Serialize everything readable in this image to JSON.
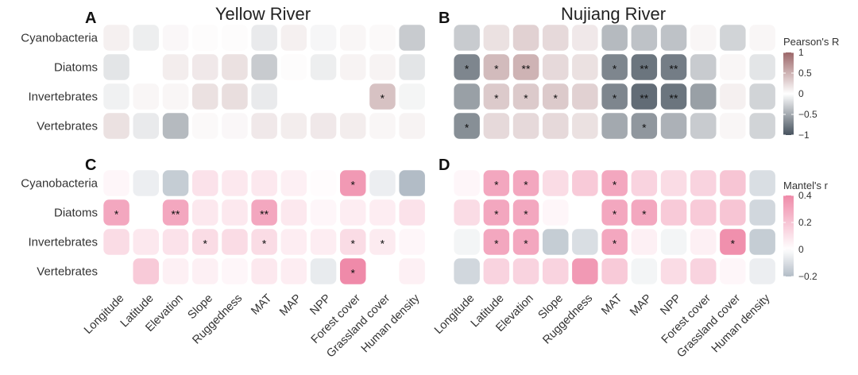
{
  "titles": {
    "left": "Yellow River",
    "right": "Nujiang River"
  },
  "panel_letters": [
    "A",
    "B",
    "C",
    "D"
  ],
  "chart_data": [
    {
      "panel": "A",
      "type": "heatmap",
      "metric": "Pearson's R",
      "title": "Yellow River",
      "rows": [
        "Cyanobacteria",
        "Diatoms",
        "Invertebrates",
        "Vertebrates"
      ],
      "columns": [
        "Longitude",
        "Latitude",
        "Elevation",
        "Slope",
        "Ruggedness",
        "MAT",
        "MAP",
        "NPP",
        "Forest cover",
        "Grassland cover",
        "Human density"
      ],
      "values": [
        [
          0.1,
          -0.1,
          0.05,
          0.02,
          0.02,
          -0.12,
          0.1,
          -0.05,
          0.06,
          0.04,
          -0.3
        ],
        [
          -0.15,
          0,
          0.12,
          0.15,
          0.2,
          -0.3,
          0.02,
          -0.1,
          0.08,
          0.08,
          -0.15
        ],
        [
          -0.08,
          0.06,
          0.06,
          0.2,
          0.22,
          -0.12,
          0,
          0,
          0,
          0.4,
          -0.06
        ],
        [
          0.2,
          -0.12,
          -0.4,
          0.04,
          0.05,
          0.15,
          0.12,
          0.15,
          0.12,
          0.06,
          0.08
        ]
      ],
      "significance": [
        [
          "",
          "",
          "",
          "",
          "",
          "",
          "",
          "",
          "",
          "",
          ""
        ],
        [
          "",
          "",
          "",
          "",
          "",
          "",
          "",
          "",
          "",
          "",
          ""
        ],
        [
          "",
          "",
          "",
          "",
          "",
          "",
          "",
          "",
          "",
          "*",
          ""
        ],
        [
          "",
          "",
          "",
          "",
          "",
          "",
          "",
          "",
          "",
          "",
          ""
        ]
      ]
    },
    {
      "panel": "B",
      "type": "heatmap",
      "metric": "Pearson's R",
      "title": "Nujiang River",
      "rows": [
        "Cyanobacteria",
        "Diatoms",
        "Invertebrates",
        "Vertebrates"
      ],
      "columns": [
        "Longitude",
        "Latitude",
        "Elevation",
        "Slope",
        "Ruggedness",
        "MAT",
        "MAP",
        "NPP",
        "Forest cover",
        "Grassland cover",
        "Human density"
      ],
      "values": [
        [
          -0.3,
          0.2,
          0.3,
          0.25,
          0.15,
          -0.4,
          -0.35,
          -0.35,
          0.06,
          -0.25,
          0.06
        ],
        [
          -0.7,
          0.45,
          0.5,
          0.25,
          0.2,
          -0.7,
          -0.8,
          -0.75,
          -0.3,
          0.06,
          -0.15
        ],
        [
          -0.55,
          0.35,
          0.35,
          0.35,
          0.3,
          -0.7,
          -0.85,
          -0.8,
          -0.55,
          0.1,
          -0.25
        ],
        [
          -0.65,
          0.25,
          0.25,
          0.25,
          0.2,
          -0.5,
          -0.6,
          -0.45,
          -0.3,
          0.06,
          -0.25
        ]
      ],
      "significance": [
        [
          "",
          "",
          "",
          "",
          "",
          "",
          "",
          "",
          "",
          "",
          ""
        ],
        [
          "*",
          "*",
          "**",
          "",
          "",
          "*",
          "**",
          "**",
          "",
          "",
          ""
        ],
        [
          "",
          "*",
          "*",
          "*",
          "",
          "*",
          "**",
          "**",
          "",
          "",
          ""
        ],
        [
          "*",
          "",
          "",
          "",
          "",
          "",
          "*",
          "",
          "",
          "",
          ""
        ]
      ]
    },
    {
      "panel": "C",
      "type": "heatmap",
      "metric": "Mantel's r",
      "title": "",
      "rows": [
        "Cyanobacteria",
        "Diatoms",
        "Invertebrates",
        "Vertebrates"
      ],
      "columns": [
        "Longitude",
        "Latitude",
        "Elevation",
        "Slope",
        "Ruggedness",
        "MAT",
        "MAP",
        "NPP",
        "Forest cover",
        "Grassland cover",
        "Human density"
      ],
      "values": [
        [
          0.03,
          -0.05,
          -0.15,
          0.1,
          0.08,
          0.08,
          0.05,
          0.01,
          0.35,
          -0.05,
          -0.2
        ],
        [
          0.3,
          0,
          0.3,
          0.08,
          0.08,
          0.3,
          0.08,
          0.03,
          0.06,
          0.06,
          0.1
        ],
        [
          0.12,
          0.08,
          0.1,
          0.12,
          0.12,
          0.12,
          0.06,
          0.06,
          0.12,
          0.07,
          0.03
        ],
        [
          0,
          0.18,
          0.05,
          0.05,
          0.03,
          0.08,
          0.06,
          -0.06,
          0.4,
          0,
          0.05
        ]
      ],
      "significance": [
        [
          "",
          "",
          "",
          "",
          "",
          "",
          "",
          "",
          "*",
          "",
          ""
        ],
        [
          "*",
          "",
          "**",
          "",
          "",
          "**",
          "",
          "",
          "",
          "",
          ""
        ],
        [
          "",
          "",
          "",
          "*",
          "",
          "*",
          "",
          "",
          "*",
          "*",
          ""
        ],
        [
          "",
          "",
          "",
          "",
          "",
          "",
          "",
          "",
          "*",
          "",
          ""
        ]
      ]
    },
    {
      "panel": "D",
      "type": "heatmap",
      "metric": "Mantel's r",
      "title": "",
      "rows": [
        "Cyanobacteria",
        "Diatoms",
        "Invertebrates",
        "Vertebrates"
      ],
      "columns": [
        "Longitude",
        "Latitude",
        "Elevation",
        "Slope",
        "Ruggedness",
        "MAT",
        "MAP",
        "NPP",
        "Forest cover",
        "Grassland cover",
        "Human density"
      ],
      "values": [
        [
          0.03,
          0.3,
          0.3,
          0.12,
          0.18,
          0.3,
          0.15,
          0.12,
          0.15,
          0.2,
          -0.1
        ],
        [
          0.12,
          0.3,
          0.3,
          0.03,
          0,
          0.3,
          0.3,
          0.18,
          0.18,
          0.2,
          -0.12
        ],
        [
          -0.03,
          0.3,
          0.3,
          -0.15,
          -0.1,
          0.3,
          0.05,
          -0.03,
          0.05,
          0.38,
          -0.15
        ],
        [
          -0.12,
          0.15,
          0.15,
          0.15,
          0.35,
          0.18,
          -0.03,
          0.12,
          0.15,
          0.03,
          -0.05
        ]
      ],
      "significance": [
        [
          "",
          "*",
          "*",
          "",
          "",
          "*",
          "",
          "",
          "",
          "",
          ""
        ],
        [
          "",
          "*",
          "*",
          "",
          "",
          "*",
          "*",
          "",
          "",
          "",
          ""
        ],
        [
          "",
          "*",
          "*",
          "",
          "",
          "*",
          "",
          "",
          "",
          "*",
          ""
        ],
        [
          "",
          "",
          "",
          "",
          "",
          "",
          "",
          "",
          "",
          "",
          ""
        ]
      ]
    }
  ],
  "legends": [
    {
      "title": "Pearson's R",
      "ticks": [
        "1",
        "0.5",
        "0",
        "−0.5",
        "−1"
      ],
      "tick_values": [
        1,
        0.5,
        0,
        -0.5,
        -1
      ],
      "range": [
        -1,
        1
      ],
      "colors": {
        "negative": "#46525e",
        "zero": "#ffffff",
        "positive": "#9c6769"
      }
    },
    {
      "title": "Mantel's r",
      "ticks": [
        "0.4",
        "0.2",
        "0",
        "−0.2"
      ],
      "tick_values": [
        0.4,
        0.2,
        0,
        -0.2
      ],
      "range": [
        -0.2,
        0.4
      ],
      "colors": {
        "negative": "#b2bcc6",
        "zero": "#ffffff",
        "positive": "#ef8aa9"
      }
    }
  ]
}
